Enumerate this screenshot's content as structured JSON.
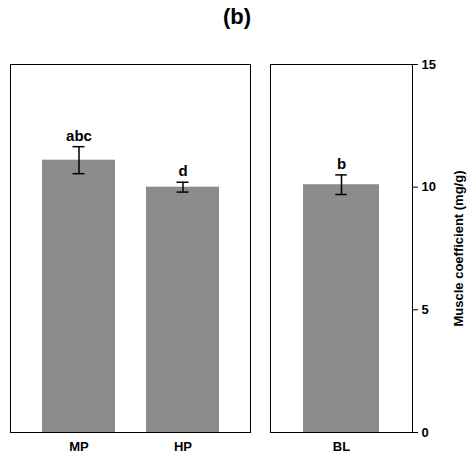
{
  "chart_data": [
    {
      "type": "bar",
      "title": "(b)",
      "categories": [
        "MP",
        "HP"
      ],
      "values": [
        11.1,
        10.0
      ],
      "errors": [
        0.55,
        0.2
      ],
      "annotations": [
        "abc",
        "d"
      ],
      "color": "#8c8c8c",
      "ylim": [
        0,
        15
      ],
      "tick_labels": "x"
    },
    {
      "type": "bar",
      "categories": [
        "BL"
      ],
      "values": [
        10.1
      ],
      "errors": [
        0.4
      ],
      "annotations": [
        "b"
      ],
      "color": "#8c8c8c",
      "ylim": [
        0,
        15
      ],
      "yticks": [
        0,
        5,
        10,
        15
      ],
      "ylabel": "Muscle coefficient (mg/g)"
    }
  ]
}
